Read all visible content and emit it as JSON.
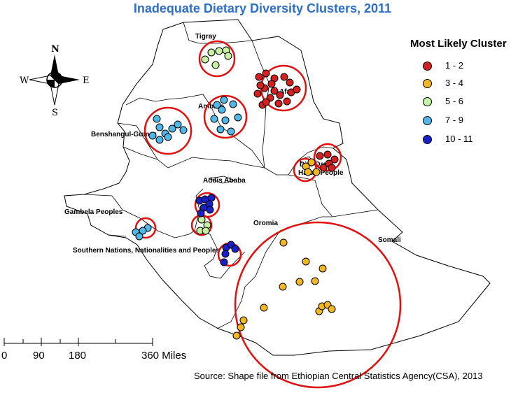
{
  "title": "Inadequate Dietary Diversity Clusters, 2011",
  "legend": {
    "title": "Most Likely Cluster",
    "items": [
      {
        "label": "1 - 2",
        "color": "#d62020"
      },
      {
        "label": "3 - 4",
        "color": "#f2b824"
      },
      {
        "label": "5 - 6",
        "color": "#c6f2a2"
      },
      {
        "label": "7 - 9",
        "color": "#4fb8e8"
      },
      {
        "label": "10 - 11",
        "color": "#1a20c8"
      }
    ]
  },
  "compass": {
    "n": "N",
    "s": "S",
    "e": "E",
    "w": "W"
  },
  "regions": {
    "tigray": "Tigray",
    "afar": "Afar",
    "amhara": "Amhara",
    "benshangul": "Benshangul-Gumaz",
    "dire_dawa": "Dire Dawa",
    "harari": "Harari People",
    "addis": "Addis Ababa",
    "gambela": "Gambela Peoples",
    "oromia": "Oromia",
    "somali": "Somali",
    "snnp": "Southern Nations, Nationalities and Peoples"
  },
  "scale_bar": {
    "ticks": [
      "0",
      "90",
      "180",
      "360 Miles"
    ]
  },
  "source": "Source: Shape file from Ethiopian Central Statistics Agency(CSA), 2013",
  "cluster_ring_color": "#e01010"
}
